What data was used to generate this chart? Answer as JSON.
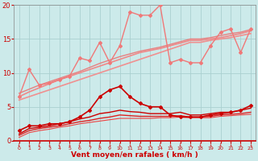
{
  "background_color": "#cceaea",
  "grid_color": "#aad0d0",
  "x_values": [
    0,
    1,
    2,
    3,
    4,
    5,
    6,
    7,
    8,
    9,
    10,
    11,
    12,
    13,
    14,
    15,
    16,
    17,
    18,
    19,
    20,
    21,
    22,
    23
  ],
  "xlabel": "Vent moyen/en rafales ( km/h )",
  "xlabel_color": "#cc0000",
  "tick_color": "#cc0000",
  "ylim": [
    0,
    20
  ],
  "yticks": [
    0,
    5,
    10,
    15,
    20
  ],
  "lines": [
    {
      "y": [
        6.5,
        10.5,
        8.2,
        8.5,
        9.0,
        9.5,
        12.2,
        11.8,
        14.5,
        11.5,
        14.0,
        19.0,
        18.5,
        18.5,
        20.0,
        11.5,
        12.0,
        11.5,
        11.5,
        14.0,
        16.0,
        16.5,
        13.0,
        16.5
      ],
      "color": "#f07878",
      "lw": 1.0,
      "marker": "D",
      "ms": 2.0,
      "zorder": 4
    },
    {
      "y": [
        6.0,
        6.5,
        7.0,
        7.5,
        8.0,
        8.5,
        9.0,
        9.5,
        10.0,
        10.5,
        11.0,
        11.5,
        12.0,
        12.5,
        13.0,
        13.5,
        14.0,
        14.5,
        14.5,
        14.8,
        15.0,
        15.2,
        15.5,
        15.8
      ],
      "color": "#f09090",
      "lw": 1.2,
      "marker": null,
      "ms": 0,
      "zorder": 2
    },
    {
      "y": [
        6.5,
        7.2,
        7.8,
        8.4,
        9.0,
        9.5,
        10.0,
        10.5,
        11.0,
        11.5,
        12.0,
        12.5,
        13.0,
        13.3,
        13.6,
        14.0,
        14.4,
        14.8,
        14.8,
        15.0,
        15.2,
        15.5,
        15.8,
        16.2
      ],
      "color": "#f08888",
      "lw": 1.2,
      "marker": null,
      "ms": 0,
      "zorder": 2
    },
    {
      "y": [
        7.0,
        7.6,
        8.2,
        8.7,
        9.2,
        9.7,
        10.2,
        10.8,
        11.4,
        11.9,
        12.4,
        12.8,
        13.2,
        13.5,
        13.8,
        14.2,
        14.6,
        15.0,
        15.0,
        15.2,
        15.5,
        15.8,
        16.0,
        16.4
      ],
      "color": "#e88080",
      "lw": 1.0,
      "marker": null,
      "ms": 0,
      "zorder": 2
    },
    {
      "y": [
        1.5,
        2.2,
        2.2,
        2.5,
        2.5,
        2.8,
        3.5,
        4.5,
        6.5,
        7.5,
        8.0,
        6.5,
        5.5,
        5.0,
        5.0,
        3.8,
        3.5,
        3.5,
        3.5,
        3.8,
        4.0,
        4.2,
        4.5,
        5.2
      ],
      "color": "#cc0000",
      "lw": 1.2,
      "marker": "D",
      "ms": 2.0,
      "zorder": 5
    },
    {
      "y": [
        1.0,
        1.8,
        2.0,
        2.2,
        2.5,
        2.8,
        3.2,
        3.5,
        4.0,
        4.2,
        4.5,
        4.3,
        4.2,
        4.0,
        4.0,
        4.0,
        4.2,
        3.8,
        3.8,
        4.0,
        4.2,
        4.2,
        4.5,
        4.8
      ],
      "color": "#cc0000",
      "lw": 1.0,
      "marker": null,
      "ms": 0,
      "zorder": 3
    },
    {
      "y": [
        0.8,
        1.5,
        1.8,
        2.0,
        2.2,
        2.5,
        2.8,
        3.0,
        3.3,
        3.5,
        3.8,
        3.7,
        3.6,
        3.6,
        3.6,
        3.6,
        3.7,
        3.5,
        3.5,
        3.6,
        3.8,
        3.9,
        4.0,
        4.2
      ],
      "color": "#dd2222",
      "lw": 1.0,
      "marker": null,
      "ms": 0,
      "zorder": 3
    },
    {
      "y": [
        0.5,
        1.2,
        1.5,
        1.7,
        2.0,
        2.2,
        2.5,
        2.7,
        2.9,
        3.1,
        3.3,
        3.3,
        3.3,
        3.3,
        3.4,
        3.4,
        3.5,
        3.4,
        3.4,
        3.4,
        3.6,
        3.7,
        3.8,
        3.9
      ],
      "color": "#ee4444",
      "lw": 0.8,
      "marker": null,
      "ms": 0,
      "zorder": 3
    }
  ],
  "figsize": [
    3.2,
    2.0
  ],
  "dpi": 100
}
